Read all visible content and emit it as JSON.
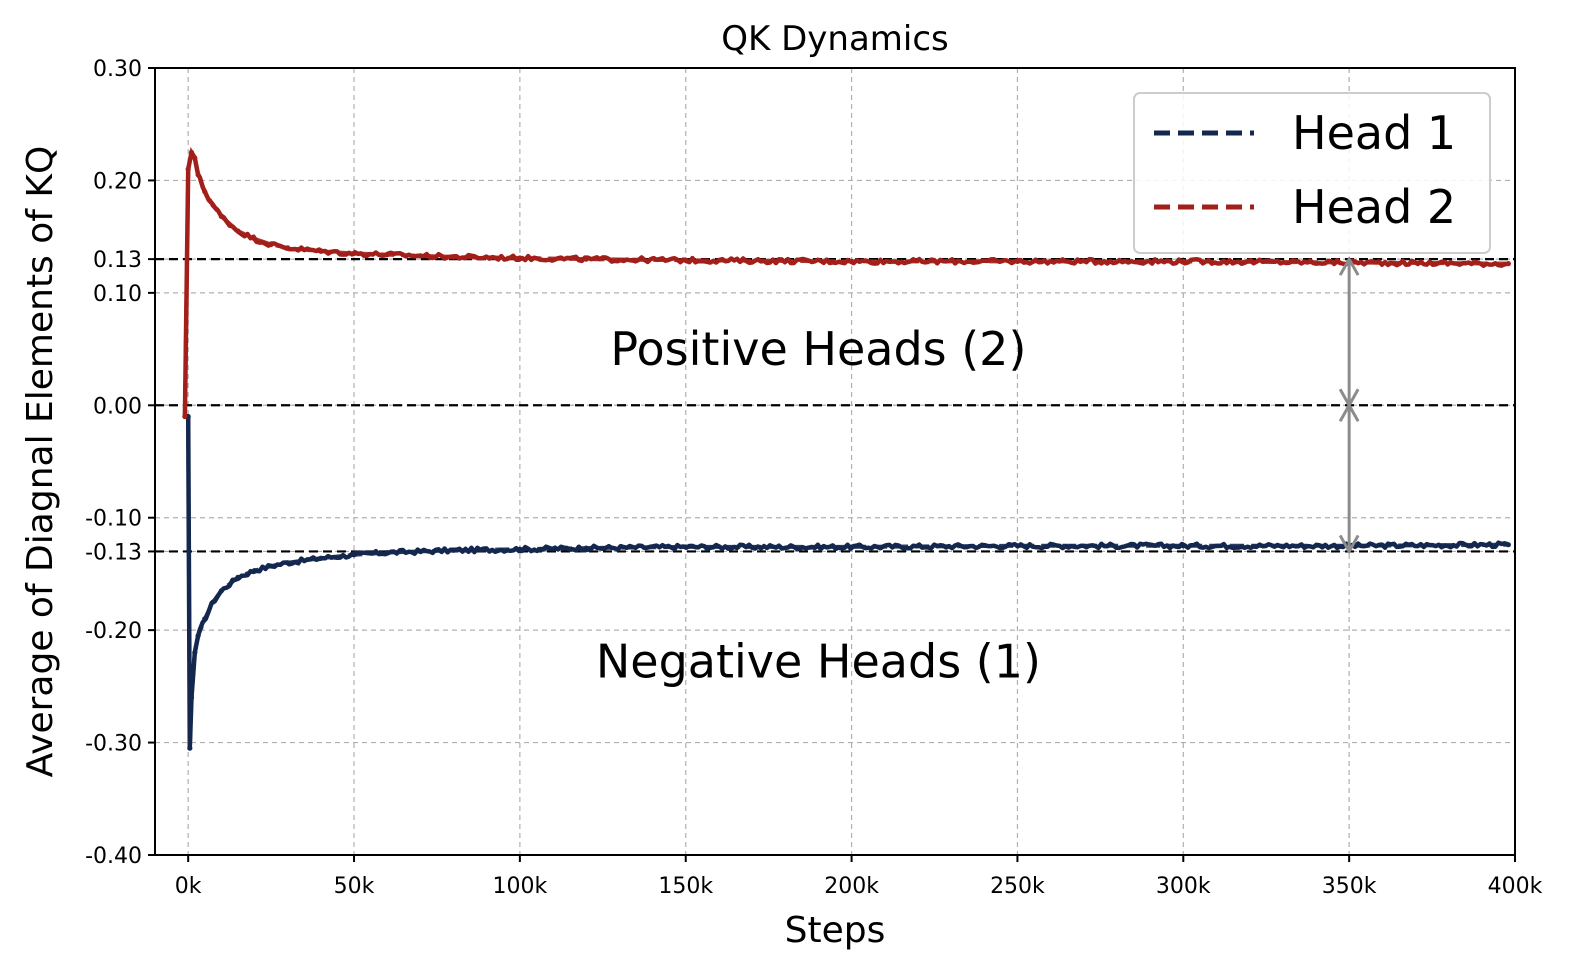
{
  "chart_data": {
    "type": "line",
    "title": "QK Dynamics",
    "xlabel": "Steps",
    "ylabel": "Average of Diagnal Elements of KQ",
    "xlim": [
      -10000,
      400000
    ],
    "ylim": [
      -0.4,
      0.3
    ],
    "grid": true,
    "legend_position": "top-right",
    "x_ticks": [
      {
        "value": 0,
        "label": "0k"
      },
      {
        "value": 50000,
        "label": "50k"
      },
      {
        "value": 100000,
        "label": "100k"
      },
      {
        "value": 150000,
        "label": "150k"
      },
      {
        "value": 200000,
        "label": "200k"
      },
      {
        "value": 250000,
        "label": "250k"
      },
      {
        "value": 300000,
        "label": "300k"
      },
      {
        "value": 350000,
        "label": "350k"
      },
      {
        "value": 400000,
        "label": "400k"
      }
    ],
    "y_ticks": [
      {
        "value": 0.3,
        "label": "0.30"
      },
      {
        "value": 0.2,
        "label": "0.20"
      },
      {
        "value": 0.13,
        "label": "0.13"
      },
      {
        "value": 0.1,
        "label": "0.10"
      },
      {
        "value": 0.0,
        "label": "0.00"
      },
      {
        "value": -0.1,
        "label": "-0.10"
      },
      {
        "value": -0.13,
        "label": "-0.13"
      },
      {
        "value": -0.2,
        "label": "-0.20"
      },
      {
        "value": -0.3,
        "label": "-0.30"
      },
      {
        "value": -0.4,
        "label": "-0.40"
      }
    ],
    "reference_lines": [
      0.13,
      0.0,
      -0.13
    ],
    "series": [
      {
        "name": "Head 1",
        "color": "#14284f",
        "x": [
          0,
          500,
          1000,
          2000,
          3000,
          5000,
          7500,
          10000,
          15000,
          20000,
          25000,
          30000,
          40000,
          50000,
          60000,
          70000,
          80000,
          100000,
          120000,
          150000,
          200000,
          250000,
          300000,
          350000,
          398000
        ],
        "y": [
          -0.01,
          -0.305,
          -0.26,
          -0.22,
          -0.205,
          -0.19,
          -0.175,
          -0.165,
          -0.153,
          -0.147,
          -0.143,
          -0.14,
          -0.136,
          -0.133,
          -0.131,
          -0.13,
          -0.129,
          -0.128,
          -0.127,
          -0.126,
          -0.126,
          -0.125,
          -0.125,
          -0.125,
          -0.124
        ]
      },
      {
        "name": "Head 2",
        "color": "#a31f1a",
        "x": [
          -1000,
          0,
          1000,
          2000,
          3000,
          5000,
          7500,
          10000,
          15000,
          20000,
          25000,
          30000,
          40000,
          50000,
          60000,
          70000,
          80000,
          100000,
          120000,
          150000,
          200000,
          250000,
          300000,
          350000,
          398000
        ],
        "y": [
          -0.01,
          0.21,
          0.225,
          0.22,
          0.205,
          0.19,
          0.178,
          0.168,
          0.155,
          0.148,
          0.143,
          0.14,
          0.137,
          0.135,
          0.134,
          0.133,
          0.132,
          0.131,
          0.13,
          0.129,
          0.128,
          0.128,
          0.128,
          0.127,
          0.126
        ]
      }
    ],
    "annotations": [
      {
        "text": "Positive Heads (2)",
        "x": 190000,
        "y": 0.05
      },
      {
        "text": "Negative Heads (1)",
        "x": 190000,
        "y": -0.228
      }
    ],
    "arrows": [
      {
        "x": 350000,
        "from": 0.0,
        "to": 0.13
      },
      {
        "x": 350000,
        "from": 0.0,
        "to": -0.13
      }
    ]
  }
}
